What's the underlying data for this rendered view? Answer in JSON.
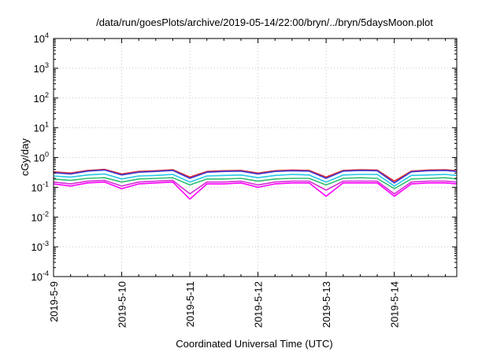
{
  "chart_data": {
    "type": "line",
    "title": "/data/run/goesPlots/archive/2019-05-14/22:00/bryn/../bryn/5daysMoon.plot",
    "xlabel": "Coordinated Universal Time (UTC)",
    "ylabel": "cGy/day",
    "x_range": [
      "2019-05-09T00:00",
      "2019-05-14T22:00"
    ],
    "y_scale": "log",
    "ylim": [
      0.0001,
      10000
    ],
    "grid": true,
    "legend": "none",
    "x_ticks": [
      "2019-5-9",
      "2019-5-10",
      "2019-5-11",
      "2019-5-12",
      "2019-5-13",
      "2019-5-14"
    ],
    "y_ticks": [
      {
        "value": 0.0001,
        "base": "10",
        "exp": "-4"
      },
      {
        "value": 0.001,
        "base": "10",
        "exp": "-3"
      },
      {
        "value": 0.01,
        "base": "10",
        "exp": "-2"
      },
      {
        "value": 0.1,
        "base": "10",
        "exp": "-1"
      },
      {
        "value": 1,
        "base": "10",
        "exp": "0"
      },
      {
        "value": 10,
        "base": "10",
        "exp": "1"
      },
      {
        "value": 100,
        "base": "10",
        "exp": "2"
      },
      {
        "value": 1000,
        "base": "10",
        "exp": "3"
      },
      {
        "value": 10000,
        "base": "10",
        "exp": "4"
      }
    ],
    "x": [
      "2019-05-09T00:00",
      "2019-05-09T06:00",
      "2019-05-09T12:00",
      "2019-05-09T18:00",
      "2019-05-10T00:00",
      "2019-05-10T06:00",
      "2019-05-10T12:00",
      "2019-05-10T18:00",
      "2019-05-11T00:00",
      "2019-05-11T06:00",
      "2019-05-11T12:00",
      "2019-05-11T18:00",
      "2019-05-12T00:00",
      "2019-05-12T06:00",
      "2019-05-12T12:00",
      "2019-05-12T18:00",
      "2019-05-13T00:00",
      "2019-05-13T06:00",
      "2019-05-13T12:00",
      "2019-05-13T18:00",
      "2019-05-14T00:00",
      "2019-05-14T06:00",
      "2019-05-14T12:00",
      "2019-05-14T18:00",
      "2019-05-14T22:00"
    ],
    "series": [
      {
        "color": "#e8262c",
        "values": [
          0.33,
          0.3,
          0.37,
          0.4,
          0.28,
          0.34,
          0.36,
          0.39,
          0.22,
          0.34,
          0.36,
          0.37,
          0.3,
          0.36,
          0.38,
          0.37,
          0.22,
          0.37,
          0.39,
          0.38,
          0.16,
          0.35,
          0.38,
          0.39,
          0.36
        ]
      },
      {
        "color": "#3b3bd6",
        "values": [
          0.31,
          0.28,
          0.35,
          0.38,
          0.26,
          0.32,
          0.34,
          0.37,
          0.2,
          0.32,
          0.34,
          0.35,
          0.28,
          0.34,
          0.36,
          0.35,
          0.2,
          0.35,
          0.37,
          0.36,
          0.14,
          0.33,
          0.36,
          0.37,
          0.34
        ]
      },
      {
        "color": "#27c7e8",
        "values": [
          0.24,
          0.22,
          0.26,
          0.28,
          0.19,
          0.24,
          0.25,
          0.27,
          0.15,
          0.24,
          0.25,
          0.26,
          0.21,
          0.25,
          0.27,
          0.26,
          0.15,
          0.26,
          0.27,
          0.27,
          0.11,
          0.25,
          0.26,
          0.27,
          0.25
        ]
      },
      {
        "color": "#2fbf71",
        "values": [
          0.19,
          0.17,
          0.2,
          0.21,
          0.15,
          0.19,
          0.2,
          0.21,
          0.12,
          0.19,
          0.19,
          0.2,
          0.16,
          0.19,
          0.2,
          0.2,
          0.12,
          0.2,
          0.21,
          0.2,
          0.09,
          0.19,
          0.2,
          0.21,
          0.19
        ]
      },
      {
        "color": "#d62fd6",
        "values": [
          0.15,
          0.13,
          0.16,
          0.17,
          0.11,
          0.15,
          0.16,
          0.17,
          0.06,
          0.15,
          0.15,
          0.16,
          0.12,
          0.15,
          0.16,
          0.16,
          0.08,
          0.16,
          0.16,
          0.16,
          0.06,
          0.15,
          0.16,
          0.16,
          0.15
        ]
      },
      {
        "color": "#ff00ff",
        "values": [
          0.13,
          0.11,
          0.14,
          0.15,
          0.09,
          0.13,
          0.14,
          0.15,
          0.04,
          0.13,
          0.13,
          0.14,
          0.1,
          0.13,
          0.14,
          0.14,
          0.05,
          0.14,
          0.14,
          0.14,
          0.05,
          0.13,
          0.14,
          0.14,
          0.13
        ]
      }
    ]
  }
}
